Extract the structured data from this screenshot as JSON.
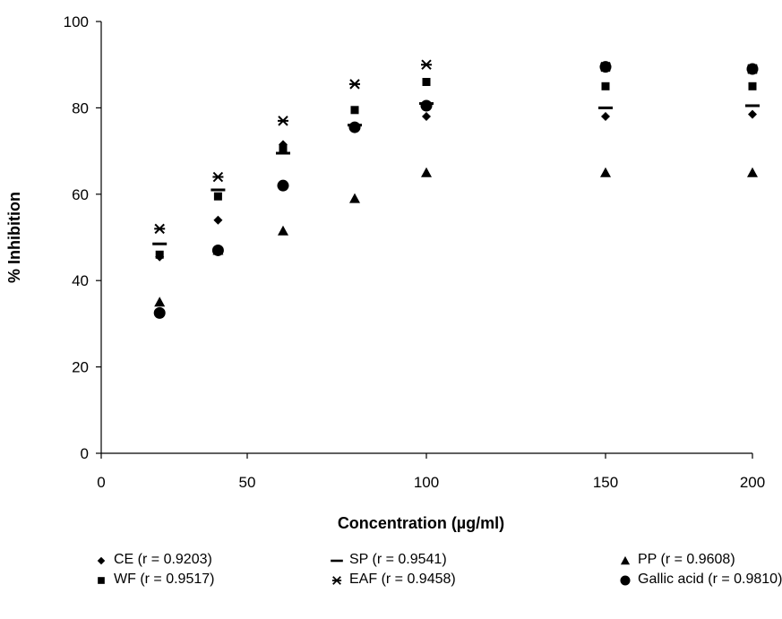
{
  "chart_data": {
    "type": "scatter",
    "title": "",
    "xlabel": "Concentration (µg/ml)",
    "ylabel": "% Inhibition",
    "xlim": [
      0,
      200
    ],
    "ylim": [
      0,
      100
    ],
    "x_ticks": [
      "0",
      "50",
      "100",
      "150",
      "200"
    ],
    "y_ticks": [
      "0",
      "20",
      "40",
      "60",
      "80",
      "100"
    ],
    "x_categories": [
      20,
      40,
      60,
      80,
      100,
      150,
      200
    ],
    "grid": false,
    "legend_position": "bottom",
    "series": [
      {
        "name": "CE (r = 0.9203)",
        "marker": "diamond",
        "values": [
          45.5,
          54,
          71.5,
          75.5,
          78,
          78,
          78.5
        ]
      },
      {
        "name": "SP (r = 0.9541)",
        "marker": "dash",
        "values": [
          48.5,
          61,
          69.5,
          76,
          81,
          80,
          80.5
        ]
      },
      {
        "name": "PP (r = 0.9608)",
        "marker": "triangle",
        "values": [
          35,
          47,
          51.5,
          59,
          65,
          65,
          65
        ]
      },
      {
        "name": "WF (r = 0.9517)",
        "marker": "square",
        "values": [
          46,
          59.5,
          70.5,
          79.5,
          86,
          85,
          85
        ]
      },
      {
        "name": "EAF (r = 0.9458)",
        "marker": "star",
        "values": [
          52,
          64,
          77,
          85.5,
          90,
          89.5,
          89
        ]
      },
      {
        "name": "Gallic acid (r = 0.9810)",
        "marker": "circle",
        "values": [
          32.5,
          47,
          62,
          75.5,
          80.5,
          89.5,
          89
        ]
      }
    ]
  }
}
